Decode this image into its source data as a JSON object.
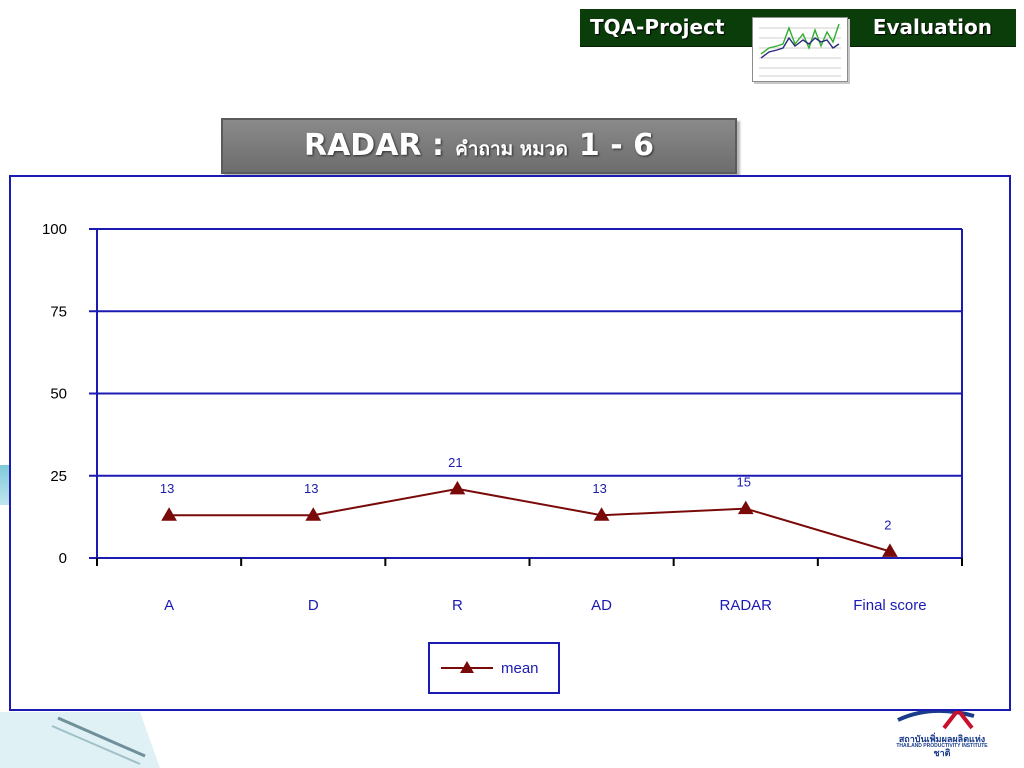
{
  "banner": {
    "left_label": "TQA-Project",
    "right_label": "Evaluation",
    "bg_color": "#0b3d0b"
  },
  "title": {
    "main": "RADAR :",
    "thai": "คำถาม หมวด",
    "range": "1 -  6"
  },
  "logo": {
    "line1": "สถาบันเพิ่มผลผลิตแห่งชาติ",
    "line2": "THAILAND PRODUCTIVITY INSTITUTE"
  },
  "chart_data": {
    "type": "line",
    "categories": [
      "A",
      "D",
      "R",
      "AD",
      "RADAR",
      "Final score"
    ],
    "series": [
      {
        "name": "mean",
        "values": [
          13,
          13,
          21,
          13,
          15,
          2
        ],
        "color": "#7a0a0a",
        "marker": "triangle"
      }
    ],
    "data_labels": [
      "13",
      "13",
      "21",
      "13",
      "15",
      "2"
    ],
    "ylim": [
      0,
      100
    ],
    "yticks": [
      "0",
      "25",
      "50",
      "75",
      "100"
    ],
    "grid": true,
    "grid_color": "#1b1bb4",
    "legend_position": "bottom-center",
    "xlabel": "",
    "ylabel": ""
  }
}
